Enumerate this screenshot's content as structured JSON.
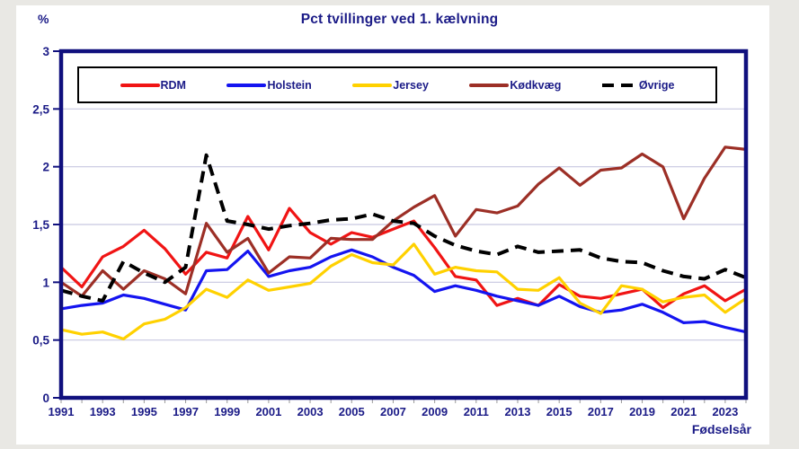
{
  "page": {
    "y_unit_label": "%",
    "x_axis_label": "Fødselsår"
  },
  "style": {
    "navy": "#1b1b87",
    "frame_color": "#10107e",
    "grid_color": "#c7c7e1",
    "minor_tick_color": "#9a9a9a",
    "background": "#ffffff"
  },
  "chart_data": {
    "type": "line",
    "title": "Pct tvillinger ved 1. kælvning",
    "xlabel": "Fødselsår",
    "ylabel": "%",
    "ylim": [
      0,
      3
    ],
    "grid": "horizontal",
    "legend_position": "top-inside",
    "y_tick_values": [
      0,
      0.5,
      1,
      1.5,
      2,
      2.5,
      3
    ],
    "y_tick_labels": [
      "0",
      "0,5",
      "1",
      "1,5",
      "2",
      "2,5",
      "3"
    ],
    "x_tick_values": [
      1991,
      1993,
      1995,
      1997,
      1999,
      2001,
      2003,
      2005,
      2007,
      2009,
      2011,
      2013,
      2015,
      2017,
      2019,
      2021,
      2023
    ],
    "x": [
      1991,
      1992,
      1993,
      1994,
      1995,
      1996,
      1997,
      1998,
      1999,
      2000,
      2001,
      2002,
      2003,
      2004,
      2005,
      2006,
      2007,
      2008,
      2009,
      2010,
      2011,
      2012,
      2013,
      2014,
      2015,
      2016,
      2017,
      2018,
      2019,
      2020,
      2021,
      2022,
      2023,
      2024
    ],
    "series": [
      {
        "name": "RDM",
        "color": "#f01414",
        "dashed": false,
        "values": [
          1.13,
          0.96,
          1.22,
          1.31,
          1.45,
          1.29,
          1.07,
          1.26,
          1.21,
          1.57,
          1.28,
          1.64,
          1.43,
          1.33,
          1.43,
          1.39,
          1.46,
          1.53,
          1.3,
          1.05,
          1.02,
          0.8,
          0.86,
          0.8,
          0.98,
          0.88,
          0.86,
          0.9,
          0.94,
          0.78,
          0.9,
          0.97,
          0.84,
          0.94
        ]
      },
      {
        "name": "Holstein",
        "color": "#1414f0",
        "dashed": false,
        "values": [
          0.77,
          0.8,
          0.82,
          0.89,
          0.86,
          0.81,
          0.76,
          1.1,
          1.11,
          1.27,
          1.05,
          1.1,
          1.13,
          1.22,
          1.28,
          1.22,
          1.13,
          1.06,
          0.92,
          0.97,
          0.93,
          0.88,
          0.84,
          0.8,
          0.88,
          0.79,
          0.74,
          0.76,
          0.81,
          0.74,
          0.65,
          0.66,
          0.61,
          0.57
        ]
      },
      {
        "name": "Jersey",
        "color": "#ffd100",
        "dashed": false,
        "values": [
          0.59,
          0.55,
          0.57,
          0.51,
          0.64,
          0.68,
          0.78,
          0.94,
          0.87,
          1.02,
          0.93,
          0.96,
          0.99,
          1.14,
          1.24,
          1.17,
          1.15,
          1.33,
          1.07,
          1.13,
          1.1,
          1.09,
          0.94,
          0.93,
          1.04,
          0.82,
          0.73,
          0.97,
          0.94,
          0.83,
          0.87,
          0.89,
          0.74,
          0.86
        ]
      },
      {
        "name": "Kødkvæg",
        "color": "#9c2f26",
        "dashed": false,
        "values": [
          1.0,
          0.88,
          1.1,
          0.94,
          1.1,
          1.03,
          0.9,
          1.51,
          1.26,
          1.38,
          1.08,
          1.22,
          1.21,
          1.38,
          1.37,
          1.37,
          1.53,
          1.65,
          1.75,
          1.4,
          1.63,
          1.6,
          1.66,
          1.85,
          1.99,
          1.84,
          1.97,
          1.99,
          2.11,
          2.0,
          1.55,
          1.9,
          2.17,
          2.15
        ]
      },
      {
        "name": "Øvrige",
        "color": "#000000",
        "dashed": true,
        "values": [
          0.93,
          0.88,
          0.84,
          1.18,
          1.08,
          1.0,
          1.13,
          2.1,
          1.53,
          1.5,
          1.46,
          1.49,
          1.51,
          1.54,
          1.55,
          1.59,
          1.53,
          1.51,
          1.4,
          1.32,
          1.27,
          1.24,
          1.31,
          1.26,
          1.27,
          1.28,
          1.21,
          1.18,
          1.17,
          1.1,
          1.05,
          1.03,
          1.11,
          1.04
        ]
      }
    ]
  }
}
